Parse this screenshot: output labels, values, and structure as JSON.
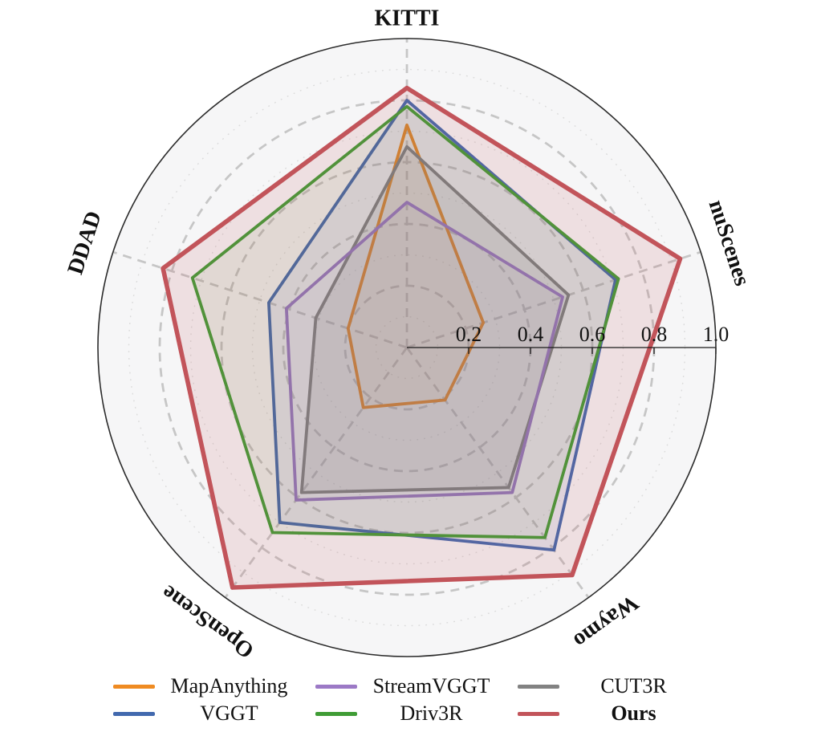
{
  "figure": {
    "page_bg": "#ffffff",
    "chart_bg": "#f6f6f7",
    "outer_ring_color": "#2b2b2b",
    "major_grid_color": "#c6c6c6",
    "minor_grid_color": "#dbdbdb",
    "axis_line_color": "#1a1a1a",
    "tick_label_color": "#1a1a1a"
  },
  "chart_data": {
    "type": "radar",
    "title": "",
    "r_max": 1.0,
    "axes": [
      {
        "label": "KITTI",
        "angle_deg": 90,
        "label_rotation_deg": 0,
        "label_radius": 410
      },
      {
        "label": "nuScenes",
        "angle_deg": 18,
        "label_rotation_deg": 72,
        "label_radius": 422
      },
      {
        "label": "Waymo",
        "angle_deg": -54,
        "label_rotation_deg": 144,
        "label_radius": 422
      },
      {
        "label": "OpenScene",
        "angle_deg": -126,
        "label_rotation_deg": -144,
        "label_radius": 422
      },
      {
        "label": "DDAD",
        "angle_deg": 162,
        "label_rotation_deg": -72,
        "label_radius": 422
      }
    ],
    "grid": {
      "dashed_rings": [
        0.2,
        0.4,
        0.6,
        0.8
      ],
      "dotted_rings": [
        0.1,
        0.3,
        0.5,
        0.7,
        0.9
      ],
      "spokes_on": true,
      "legend_position": "bottom"
    },
    "radial_ticks": [
      {
        "label": "0.2",
        "value": 0.2
      },
      {
        "label": "0.4",
        "value": 0.4
      },
      {
        "label": "0.6",
        "value": 0.6
      },
      {
        "label": "0.8",
        "value": 0.8
      },
      {
        "label": "1.0",
        "value": 1.0
      }
    ],
    "series": [
      {
        "name": "MapAnything",
        "color": "#ef8b22",
        "fill_alpha": 0.07,
        "line_width": 3.8,
        "bold": false,
        "values": [
          0.72,
          0.26,
          0.21,
          0.24,
          0.2
        ]
      },
      {
        "name": "CUT3R",
        "color": "#828282",
        "fill_alpha": 0.16,
        "line_width": 3.8,
        "bold": false,
        "values": [
          0.65,
          0.55,
          0.56,
          0.58,
          0.31
        ]
      },
      {
        "name": "StreamVGGT",
        "color": "#9c79c6",
        "fill_alpha": 0.06,
        "line_width": 3.8,
        "bold": false,
        "values": [
          0.47,
          0.53,
          0.58,
          0.61,
          0.41
        ]
      },
      {
        "name": "VGGT",
        "color": "#4269ae",
        "fill_alpha": 0.09,
        "line_width": 3.8,
        "bold": false,
        "values": [
          0.8,
          0.71,
          0.81,
          0.7,
          0.47
        ]
      },
      {
        "name": "Driv3R",
        "color": "#3f9c35",
        "fill_alpha": 0.08,
        "line_width": 3.8,
        "bold": false,
        "values": [
          0.78,
          0.72,
          0.76,
          0.74,
          0.73
        ]
      },
      {
        "name": "Ours",
        "color": "#c2545a",
        "fill_alpha": 0.14,
        "line_width": 5.6,
        "bold": true,
        "values": [
          0.84,
          0.93,
          0.91,
          0.96,
          0.83
        ]
      }
    ],
    "legend_rows": [
      [
        0,
        2,
        1
      ],
      [
        3,
        4,
        5
      ]
    ]
  }
}
